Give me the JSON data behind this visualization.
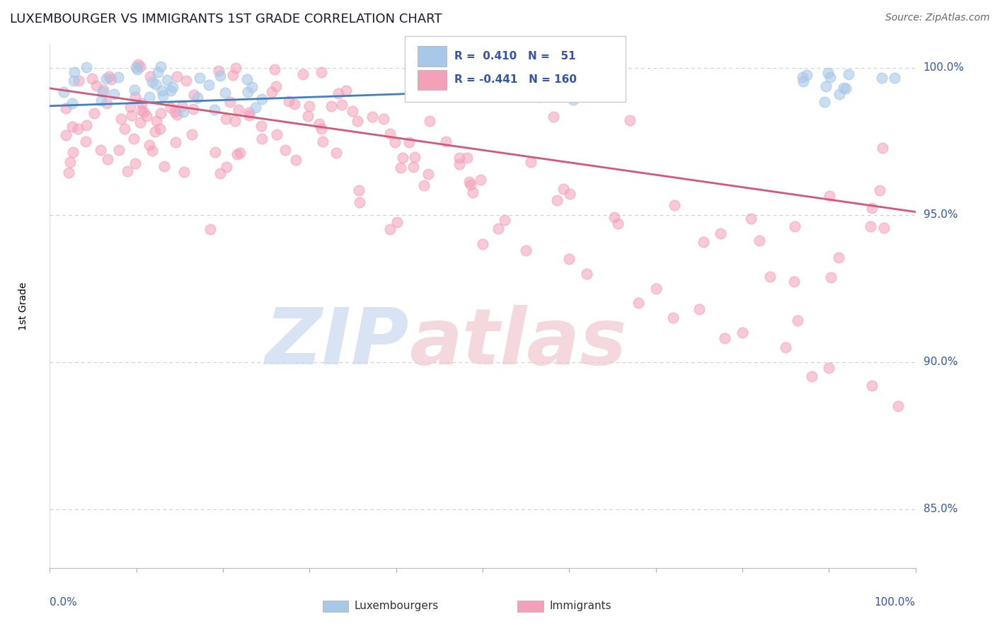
{
  "title": "LUXEMBOURGER VS IMMIGRANTS 1ST GRADE CORRELATION CHART",
  "source_text": "Source: ZipAtlas.com",
  "ylabel": "1st Grade",
  "blue_R": 0.41,
  "blue_N": 51,
  "pink_R": -0.441,
  "pink_N": 160,
  "blue_color": "#A8C8E8",
  "pink_color": "#F4A0B8",
  "blue_line_color": "#4080C0",
  "pink_line_color": "#D05878",
  "watermark_zip_color": "#C8D8F0",
  "watermark_atlas_color": "#F0C8D0",
  "background_color": "#FFFFFF",
  "xlim": [
    0.0,
    1.0
  ],
  "ylim": [
    0.83,
    1.008
  ],
  "yticks": [
    0.85,
    0.9,
    0.95,
    1.0
  ],
  "ytick_labels": [
    "85.0%",
    "90.0%",
    "95.0%",
    "100.0%"
  ],
  "blue_trend_x0": 0.0,
  "blue_trend_y0": 0.987,
  "blue_trend_x1": 0.65,
  "blue_trend_y1": 0.9935,
  "pink_trend_x0": 0.0,
  "pink_trend_y0": 0.993,
  "pink_trend_x1": 1.0,
  "pink_trend_y1": 0.951,
  "legend_R_blue_text": "R =  0.410   N =   51",
  "legend_R_pink_text": "R = -0.441   N = 160"
}
